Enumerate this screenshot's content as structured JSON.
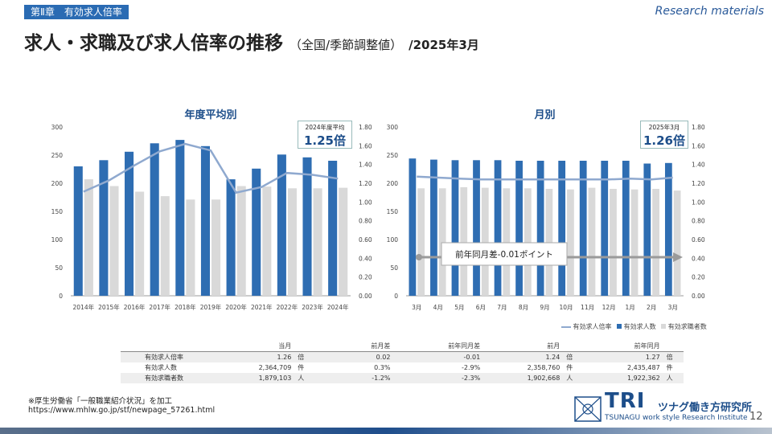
{
  "header": {
    "chapter": "第Ⅱ章　有効求人倍率",
    "research": "Research materials",
    "title_main": "求人・求職及び求人倍率の推移",
    "title_sub": "（全国/季節調整値）",
    "title_date": "/2025年3月"
  },
  "callouts": {
    "annual_label": "2024年度平均",
    "annual_value": "1.25倍",
    "monthly_label": "2025年3月",
    "monthly_value": "1.26倍",
    "yoy_text": "前年同月差-0.01ポイント"
  },
  "legend": {
    "ratio": "有効求人倍率",
    "openings": "有効求人数",
    "seekers": "有効求職者数"
  },
  "colors": {
    "bar_dark": "#2e6db2",
    "bar_light": "#d9d9d9",
    "line": "#8fa9cf",
    "arrow": "#9a9a9a"
  },
  "chart_data": [
    {
      "type": "bar",
      "title": "年度平均別",
      "categories": [
        "2014年",
        "2015年",
        "2016年",
        "2017年",
        "2018年",
        "2019年",
        "2020年",
        "2021年",
        "2022年",
        "2023年",
        "2024年"
      ],
      "series": [
        {
          "name": "有効求人数",
          "axis": "left",
          "values": [
            230,
            241,
            256,
            271,
            277,
            266,
            207,
            226,
            251,
            246,
            240
          ]
        },
        {
          "name": "有効求職者数",
          "axis": "left",
          "values": [
            207,
            195,
            185,
            177,
            171,
            171,
            195,
            194,
            191,
            191,
            192
          ]
        },
        {
          "name": "有効求人倍率",
          "axis": "right",
          "type": "line",
          "values": [
            1.11,
            1.23,
            1.39,
            1.54,
            1.62,
            1.55,
            1.1,
            1.16,
            1.31,
            1.29,
            1.25
          ]
        }
      ],
      "ylim_left": [
        0,
        300
      ],
      "yticks_left": [
        "0",
        "50",
        "100",
        "150",
        "200",
        "250",
        "300"
      ],
      "ylim_right": [
        0,
        1.8
      ],
      "yticks_right": [
        "0.00",
        "0.20",
        "0.40",
        "0.60",
        "0.80",
        "1.00",
        "1.20",
        "1.40",
        "1.60",
        "1.80"
      ]
    },
    {
      "type": "bar",
      "title": "月別",
      "categories": [
        "3月",
        "4月",
        "5月",
        "6月",
        "7月",
        "8月",
        "9月",
        "10月",
        "11月",
        "12月",
        "1月",
        "2月",
        "3月"
      ],
      "series": [
        {
          "name": "有効求人数",
          "axis": "left",
          "values": [
            244,
            242,
            241,
            241,
            241,
            240,
            240,
            240,
            240,
            240,
            240,
            235,
            236
          ]
        },
        {
          "name": "有効求職者数",
          "axis": "left",
          "values": [
            191,
            191,
            193,
            192,
            191,
            191,
            190,
            189,
            192,
            190,
            189,
            190,
            187
          ]
        },
        {
          "name": "有効求人倍率",
          "axis": "right",
          "type": "line",
          "values": [
            1.27,
            1.26,
            1.25,
            1.24,
            1.24,
            1.24,
            1.24,
            1.24,
            1.24,
            1.24,
            1.25,
            1.24,
            1.26
          ]
        }
      ],
      "ylim_left": [
        0,
        300
      ],
      "yticks_left": [
        "0",
        "50",
        "100",
        "150",
        "200",
        "250",
        "300"
      ],
      "ylim_right": [
        0,
        1.8
      ],
      "yticks_right": [
        "0.00",
        "0.20",
        "0.40",
        "0.60",
        "0.80",
        "1.00",
        "1.20",
        "1.40",
        "1.60",
        "1.80"
      ]
    }
  ],
  "table": {
    "headers": [
      "当月",
      "前月差",
      "前年同月差",
      "前月",
      "前年同月"
    ],
    "rows": [
      {
        "label": "有効求人倍率",
        "cur": "1.26",
        "cur_unit": "倍",
        "mom": "0.02",
        "yoy": "-0.01",
        "prev": "1.24",
        "prev_unit": "倍",
        "ly": "1.27",
        "ly_unit": "倍"
      },
      {
        "label": "有効求人数",
        "cur": "2,364,709",
        "cur_unit": "件",
        "mom": "0.3%",
        "yoy": "-2.9%",
        "prev": "2,358,760",
        "prev_unit": "件",
        "ly": "2,435,487",
        "ly_unit": "件"
      },
      {
        "label": "有効求職者数",
        "cur": "1,879,103",
        "cur_unit": "人",
        "mom": "-1.2%",
        "yoy": "-2.3%",
        "prev": "1,902,668",
        "prev_unit": "人",
        "ly": "1,922,362",
        "ly_unit": "人"
      }
    ]
  },
  "source": {
    "line1": "※厚生労働省「一般職業紹介状況」を加工",
    "line2": "https://www.mhlw.go.jp/stf/newpage_57261.html"
  },
  "logo": {
    "brand": "TRI",
    "ja": "ツナグ働き方研究所",
    "en": "TSUNAGU work style Research Institute"
  },
  "page_number": "12"
}
